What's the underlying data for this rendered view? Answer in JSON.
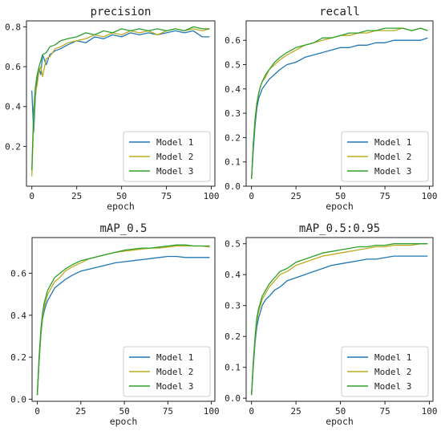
{
  "colors": {
    "model1": "#1f77b4",
    "model2": "#bcab21",
    "model3": "#2ca02c"
  },
  "chart_data": [
    {
      "type": "line",
      "title": "precision",
      "xlabel": "epoch",
      "ylabel": "",
      "xlim": [
        -3,
        102
      ],
      "ylim": [
        0.0,
        0.83
      ],
      "xticks": [
        0,
        25,
        50,
        75,
        100
      ],
      "yticks": [
        0.2,
        0.4,
        0.6,
        0.8
      ],
      "xtick_labels": [
        "0",
        "25",
        "50",
        "75",
        "100"
      ],
      "ytick_labels": [
        "0.2",
        "0.4",
        "0.6",
        "0.8"
      ],
      "legend_position": "lower-right",
      "series": [
        {
          "name": "Model 1",
          "x": [
            0,
            1,
            2,
            3,
            4,
            5,
            6,
            8,
            10,
            13,
            16,
            20,
            25,
            30,
            35,
            40,
            45,
            50,
            55,
            60,
            65,
            70,
            75,
            80,
            85,
            90,
            95,
            99
          ],
          "values": [
            0.48,
            0.27,
            0.45,
            0.54,
            0.59,
            0.56,
            0.66,
            0.61,
            0.66,
            0.68,
            0.69,
            0.71,
            0.73,
            0.72,
            0.75,
            0.74,
            0.76,
            0.75,
            0.77,
            0.76,
            0.77,
            0.76,
            0.77,
            0.78,
            0.77,
            0.78,
            0.75,
            0.75
          ]
        },
        {
          "name": "Model 2",
          "x": [
            0,
            1,
            2,
            3,
            4,
            5,
            6,
            8,
            10,
            13,
            16,
            20,
            25,
            30,
            35,
            40,
            45,
            50,
            55,
            60,
            65,
            70,
            75,
            80,
            85,
            90,
            95,
            99
          ],
          "values": [
            0.05,
            0.33,
            0.47,
            0.51,
            0.58,
            0.6,
            0.55,
            0.64,
            0.65,
            0.69,
            0.7,
            0.72,
            0.73,
            0.74,
            0.76,
            0.75,
            0.77,
            0.76,
            0.78,
            0.77,
            0.78,
            0.76,
            0.78,
            0.79,
            0.78,
            0.79,
            0.78,
            0.79
          ]
        },
        {
          "name": "Model 3",
          "x": [
            0,
            1,
            2,
            3,
            4,
            5,
            6,
            8,
            10,
            13,
            16,
            20,
            25,
            30,
            35,
            40,
            45,
            50,
            55,
            60,
            65,
            70,
            75,
            80,
            85,
            90,
            95,
            99
          ],
          "values": [
            0.08,
            0.38,
            0.5,
            0.56,
            0.6,
            0.63,
            0.66,
            0.67,
            0.7,
            0.71,
            0.73,
            0.74,
            0.75,
            0.77,
            0.76,
            0.78,
            0.77,
            0.79,
            0.78,
            0.79,
            0.78,
            0.79,
            0.78,
            0.79,
            0.78,
            0.8,
            0.79,
            0.79
          ]
        }
      ]
    },
    {
      "type": "line",
      "title": "recall",
      "xlabel": "epoch",
      "ylabel": "",
      "xlim": [
        -3,
        102
      ],
      "ylim": [
        0.0,
        0.68
      ],
      "xticks": [
        0,
        25,
        50,
        75,
        100
      ],
      "yticks": [
        0.0,
        0.1,
        0.2,
        0.3,
        0.4,
        0.5,
        0.6
      ],
      "xtick_labels": [
        "0",
        "25",
        "50",
        "75",
        "100"
      ],
      "ytick_labels": [
        "0.0",
        "0.1",
        "0.2",
        "0.3",
        "0.4",
        "0.5",
        "0.6"
      ],
      "legend_position": "lower-right",
      "series": [
        {
          "name": "Model 1",
          "x": [
            0,
            1,
            2,
            3,
            4,
            5,
            6,
            8,
            10,
            13,
            16,
            20,
            25,
            30,
            35,
            40,
            45,
            50,
            55,
            60,
            65,
            70,
            75,
            80,
            85,
            90,
            95,
            99
          ],
          "values": [
            0.03,
            0.15,
            0.25,
            0.32,
            0.36,
            0.38,
            0.4,
            0.42,
            0.44,
            0.46,
            0.48,
            0.5,
            0.51,
            0.53,
            0.54,
            0.55,
            0.56,
            0.57,
            0.57,
            0.58,
            0.58,
            0.59,
            0.59,
            0.6,
            0.6,
            0.6,
            0.6,
            0.61
          ]
        },
        {
          "name": "Model 2",
          "x": [
            0,
            1,
            2,
            3,
            4,
            5,
            6,
            8,
            10,
            13,
            16,
            20,
            25,
            30,
            35,
            40,
            45,
            50,
            55,
            60,
            65,
            70,
            75,
            80,
            85,
            90,
            95,
            99
          ],
          "values": [
            0.03,
            0.18,
            0.28,
            0.34,
            0.38,
            0.41,
            0.43,
            0.45,
            0.48,
            0.5,
            0.52,
            0.54,
            0.56,
            0.58,
            0.59,
            0.6,
            0.61,
            0.62,
            0.62,
            0.63,
            0.63,
            0.64,
            0.64,
            0.64,
            0.65,
            0.64,
            0.65,
            0.64
          ]
        },
        {
          "name": "Model 3",
          "x": [
            0,
            1,
            2,
            3,
            4,
            5,
            6,
            8,
            10,
            13,
            16,
            20,
            25,
            30,
            35,
            40,
            45,
            50,
            55,
            60,
            65,
            70,
            75,
            80,
            85,
            90,
            95,
            99
          ],
          "values": [
            0.03,
            0.17,
            0.27,
            0.34,
            0.38,
            0.41,
            0.43,
            0.46,
            0.48,
            0.51,
            0.53,
            0.55,
            0.57,
            0.58,
            0.59,
            0.61,
            0.61,
            0.62,
            0.63,
            0.63,
            0.64,
            0.64,
            0.65,
            0.65,
            0.65,
            0.64,
            0.65,
            0.64
          ]
        }
      ]
    },
    {
      "type": "line",
      "title": "mAP_0.5",
      "xlabel": "epoch",
      "ylabel": "",
      "xlim": [
        -3,
        102
      ],
      "ylim": [
        -0.01,
        0.77
      ],
      "xticks": [
        0,
        25,
        50,
        75,
        100
      ],
      "yticks": [
        0.0,
        0.2,
        0.4,
        0.6
      ],
      "xtick_labels": [
        "0",
        "25",
        "50",
        "75",
        "100"
      ],
      "ytick_labels": [
        "0.0",
        "0.2",
        "0.4",
        "0.6"
      ],
      "legend_position": "lower-right",
      "series": [
        {
          "name": "Model 1",
          "x": [
            0,
            1,
            2,
            3,
            4,
            5,
            6,
            8,
            10,
            13,
            16,
            20,
            25,
            30,
            35,
            40,
            45,
            50,
            55,
            60,
            65,
            70,
            75,
            80,
            85,
            90,
            95,
            99
          ],
          "values": [
            0.02,
            0.17,
            0.3,
            0.38,
            0.42,
            0.45,
            0.47,
            0.5,
            0.53,
            0.55,
            0.57,
            0.59,
            0.61,
            0.62,
            0.63,
            0.64,
            0.65,
            0.655,
            0.66,
            0.665,
            0.67,
            0.675,
            0.68,
            0.68,
            0.675,
            0.675,
            0.675,
            0.675
          ]
        },
        {
          "name": "Model 2",
          "x": [
            0,
            1,
            2,
            3,
            4,
            5,
            6,
            8,
            10,
            13,
            16,
            20,
            25,
            30,
            35,
            40,
            45,
            50,
            55,
            60,
            65,
            70,
            75,
            80,
            85,
            90,
            95,
            99
          ],
          "values": [
            0.02,
            0.18,
            0.31,
            0.39,
            0.44,
            0.47,
            0.5,
            0.53,
            0.56,
            0.58,
            0.61,
            0.63,
            0.65,
            0.67,
            0.68,
            0.69,
            0.7,
            0.705,
            0.71,
            0.715,
            0.72,
            0.72,
            0.725,
            0.73,
            0.73,
            0.73,
            0.73,
            0.725
          ]
        },
        {
          "name": "Model 3",
          "x": [
            0,
            1,
            2,
            3,
            4,
            5,
            6,
            8,
            10,
            13,
            16,
            20,
            25,
            30,
            35,
            40,
            45,
            50,
            55,
            60,
            65,
            70,
            75,
            80,
            85,
            90,
            95,
            99
          ],
          "values": [
            0.02,
            0.2,
            0.33,
            0.41,
            0.46,
            0.49,
            0.52,
            0.55,
            0.58,
            0.6,
            0.62,
            0.64,
            0.66,
            0.67,
            0.68,
            0.69,
            0.7,
            0.71,
            0.715,
            0.72,
            0.72,
            0.725,
            0.73,
            0.735,
            0.735,
            0.73,
            0.73,
            0.73
          ]
        }
      ]
    },
    {
      "type": "line",
      "title": "mAP_0.5:0.95",
      "xlabel": "epoch",
      "ylabel": "",
      "xlim": [
        -3,
        102
      ],
      "ylim": [
        -0.01,
        0.52
      ],
      "xticks": [
        0,
        25,
        50,
        75,
        100
      ],
      "yticks": [
        0.0,
        0.1,
        0.2,
        0.3,
        0.4,
        0.5
      ],
      "xtick_labels": [
        "0",
        "25",
        "50",
        "75",
        "100"
      ],
      "ytick_labels": [
        "0.0",
        "0.1",
        "0.2",
        "0.3",
        "0.4",
        "0.5"
      ],
      "legend_position": "lower-right",
      "series": [
        {
          "name": "Model 1",
          "x": [
            0,
            1,
            2,
            3,
            4,
            5,
            6,
            8,
            10,
            13,
            16,
            20,
            25,
            30,
            35,
            40,
            45,
            50,
            55,
            60,
            65,
            70,
            75,
            80,
            85,
            90,
            95,
            99
          ],
          "values": [
            0.01,
            0.1,
            0.18,
            0.23,
            0.26,
            0.28,
            0.3,
            0.32,
            0.33,
            0.35,
            0.36,
            0.38,
            0.39,
            0.4,
            0.41,
            0.42,
            0.43,
            0.435,
            0.44,
            0.445,
            0.45,
            0.45,
            0.455,
            0.46,
            0.46,
            0.46,
            0.46,
            0.46
          ]
        },
        {
          "name": "Model 2",
          "x": [
            0,
            1,
            2,
            3,
            4,
            5,
            6,
            8,
            10,
            13,
            16,
            20,
            25,
            30,
            35,
            40,
            45,
            50,
            55,
            60,
            65,
            70,
            75,
            80,
            85,
            90,
            95,
            99
          ],
          "values": [
            0.01,
            0.11,
            0.19,
            0.25,
            0.28,
            0.3,
            0.32,
            0.34,
            0.36,
            0.38,
            0.4,
            0.41,
            0.43,
            0.44,
            0.45,
            0.46,
            0.465,
            0.47,
            0.475,
            0.48,
            0.485,
            0.49,
            0.49,
            0.495,
            0.495,
            0.495,
            0.5,
            0.5
          ]
        },
        {
          "name": "Model 3",
          "x": [
            0,
            1,
            2,
            3,
            4,
            5,
            6,
            8,
            10,
            13,
            16,
            20,
            25,
            30,
            35,
            40,
            45,
            50,
            55,
            60,
            65,
            70,
            75,
            80,
            85,
            90,
            95,
            99
          ],
          "values": [
            0.01,
            0.12,
            0.2,
            0.26,
            0.29,
            0.31,
            0.33,
            0.35,
            0.37,
            0.39,
            0.41,
            0.42,
            0.44,
            0.45,
            0.46,
            0.47,
            0.475,
            0.48,
            0.485,
            0.49,
            0.49,
            0.495,
            0.495,
            0.5,
            0.5,
            0.5,
            0.5,
            0.5
          ]
        }
      ]
    }
  ]
}
